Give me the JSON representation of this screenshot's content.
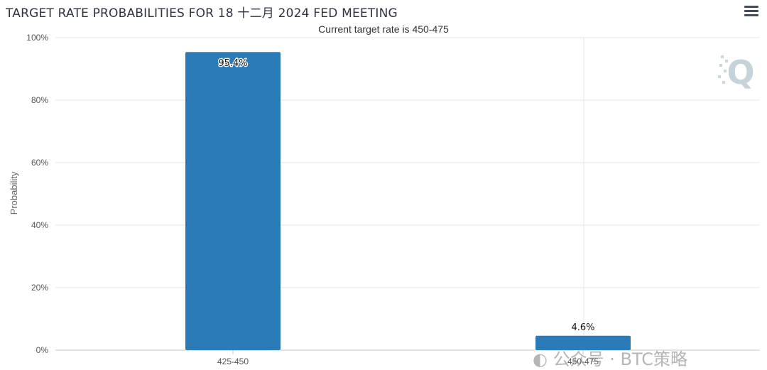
{
  "header": {
    "title": "TARGET RATE PROBABILITIES FOR 18 十二月 2024 FED MEETING",
    "subtitle": "Current target rate is 450-475",
    "menu_icon": "hamburger-menu-icon"
  },
  "watermark": {
    "text": "公众号 · BTC策略"
  },
  "logo": {
    "letter": "Q"
  },
  "colors": {
    "bar": "#2b7bb9",
    "grid": "#e6e6e6",
    "axis": "#c8c8c8"
  },
  "chart_data": {
    "type": "bar",
    "categories": [
      "425-450",
      "450-475"
    ],
    "values": [
      95.4,
      4.6
    ],
    "data_labels": [
      "95.4%",
      "4.6%"
    ],
    "title": "TARGET RATE PROBABILITIES FOR 18 十二月 2024 FED MEETING",
    "subtitle": "Current target rate is 450-475",
    "xlabel": "",
    "ylabel": "Probability",
    "ylim": [
      0,
      100
    ],
    "yticks": [
      "0%",
      "20%",
      "40%",
      "60%",
      "80%",
      "100%"
    ],
    "grid": true,
    "legend": "none"
  }
}
